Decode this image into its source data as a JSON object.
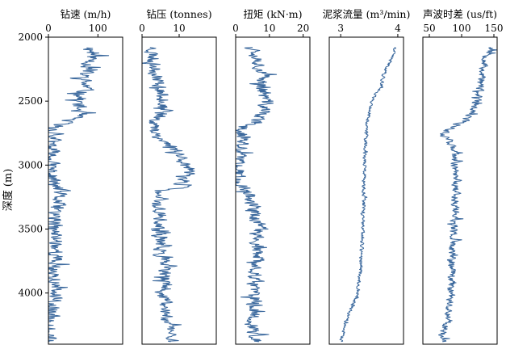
{
  "chart_data": {
    "type": "line",
    "y": {
      "label": "深度 (m)",
      "range": [
        2000,
        4400
      ],
      "inverted": true,
      "ticks": [
        2000,
        2500,
        3000,
        3500,
        4000
      ]
    },
    "series_color": "#3d6a9e",
    "tracks": [
      {
        "title": "钻速 (m/h)",
        "xlim": [
          0,
          150
        ],
        "ticks": [
          0,
          100
        ],
        "profile": [
          [
            2080,
            85
          ],
          [
            2150,
            90
          ],
          [
            2200,
            85
          ],
          [
            2300,
            70
          ],
          [
            2400,
            75
          ],
          [
            2500,
            60
          ],
          [
            2600,
            62
          ],
          [
            2650,
            40
          ],
          [
            2700,
            12
          ],
          [
            2800,
            8
          ],
          [
            2900,
            5
          ],
          [
            3000,
            5
          ],
          [
            3100,
            8
          ],
          [
            3150,
            12
          ],
          [
            3200,
            22
          ],
          [
            3300,
            18
          ],
          [
            3400,
            12
          ],
          [
            3500,
            10
          ],
          [
            3600,
            18
          ],
          [
            3700,
            15
          ],
          [
            3800,
            12
          ],
          [
            3900,
            10
          ],
          [
            4000,
            14
          ],
          [
            4050,
            8
          ],
          [
            4100,
            5
          ],
          [
            4200,
            5
          ],
          [
            4300,
            3
          ],
          [
            4380,
            3
          ]
        ],
        "noise": 22,
        "seed": 11
      },
      {
        "title": "钻压 (tonnes)",
        "xlim": [
          0,
          20
        ],
        "ticks": [
          0,
          10
        ],
        "profile": [
          [
            2080,
            3
          ],
          [
            2200,
            3
          ],
          [
            2300,
            4
          ],
          [
            2400,
            5
          ],
          [
            2500,
            6
          ],
          [
            2600,
            5
          ],
          [
            2700,
            3
          ],
          [
            2800,
            5
          ],
          [
            2850,
            8
          ],
          [
            2900,
            10
          ],
          [
            3000,
            12
          ],
          [
            3100,
            12
          ],
          [
            3180,
            10
          ],
          [
            3200,
            4
          ],
          [
            3300,
            4
          ],
          [
            3400,
            5
          ],
          [
            3500,
            4
          ],
          [
            3600,
            5
          ],
          [
            3700,
            5
          ],
          [
            3800,
            6
          ],
          [
            3900,
            6
          ],
          [
            4000,
            6
          ],
          [
            4100,
            6
          ],
          [
            4200,
            7
          ],
          [
            4300,
            8
          ],
          [
            4380,
            8
          ]
        ],
        "noise": 2.6,
        "seed": 23
      },
      {
        "title": "扭矩 (kN·m)",
        "xlim": [
          0,
          22
        ],
        "ticks": [
          0,
          10,
          20
        ],
        "profile": [
          [
            2080,
            6
          ],
          [
            2200,
            7
          ],
          [
            2300,
            8
          ],
          [
            2400,
            8
          ],
          [
            2500,
            9
          ],
          [
            2600,
            8
          ],
          [
            2650,
            6
          ],
          [
            2700,
            2
          ],
          [
            2800,
            2
          ],
          [
            2900,
            1
          ],
          [
            3000,
            1
          ],
          [
            3100,
            1
          ],
          [
            3150,
            1
          ],
          [
            3200,
            4
          ],
          [
            3300,
            5
          ],
          [
            3400,
            6
          ],
          [
            3500,
            7
          ],
          [
            3600,
            6
          ],
          [
            3700,
            6
          ],
          [
            3800,
            6
          ],
          [
            3900,
            6
          ],
          [
            4000,
            5
          ],
          [
            4100,
            6
          ],
          [
            4200,
            5
          ],
          [
            4300,
            5
          ],
          [
            4380,
            6
          ]
        ],
        "noise": 3.0,
        "seed": 37
      },
      {
        "title": "泥浆流量 (m³/min)",
        "xlim": [
          2.8,
          4.1
        ],
        "ticks": [
          3,
          4
        ],
        "profile": [
          [
            2080,
            3.95
          ],
          [
            2150,
            3.9
          ],
          [
            2200,
            3.85
          ],
          [
            2300,
            3.75
          ],
          [
            2400,
            3.7
          ],
          [
            2450,
            3.6
          ],
          [
            2500,
            3.55
          ],
          [
            2600,
            3.5
          ],
          [
            2700,
            3.45
          ],
          [
            2800,
            3.45
          ],
          [
            2900,
            3.42
          ],
          [
            3000,
            3.42
          ],
          [
            3100,
            3.41
          ],
          [
            3200,
            3.4
          ],
          [
            3300,
            3.4
          ],
          [
            3400,
            3.39
          ],
          [
            3500,
            3.38
          ],
          [
            3600,
            3.38
          ],
          [
            3700,
            3.36
          ],
          [
            3800,
            3.35
          ],
          [
            3900,
            3.32
          ],
          [
            4000,
            3.3
          ],
          [
            4050,
            3.25
          ],
          [
            4100,
            3.2
          ],
          [
            4200,
            3.1
          ],
          [
            4300,
            3.05
          ],
          [
            4380,
            3.0
          ]
        ],
        "noise": 0.04,
        "seed": 41
      },
      {
        "title": "声波时差 (us/ft)",
        "xlim": [
          40,
          155
        ],
        "ticks": [
          50,
          100,
          150
        ],
        "profile": [
          [
            2080,
            148
          ],
          [
            2150,
            140
          ],
          [
            2250,
            133
          ],
          [
            2350,
            130
          ],
          [
            2450,
            126
          ],
          [
            2550,
            118
          ],
          [
            2650,
            105
          ],
          [
            2700,
            90
          ],
          [
            2750,
            70
          ],
          [
            2800,
            82
          ],
          [
            2900,
            88
          ],
          [
            3000,
            90
          ],
          [
            3100,
            92
          ],
          [
            3200,
            92
          ],
          [
            3300,
            90
          ],
          [
            3400,
            90
          ],
          [
            3500,
            88
          ],
          [
            3600,
            86
          ],
          [
            3700,
            85
          ],
          [
            3800,
            85
          ],
          [
            3900,
            85
          ],
          [
            4000,
            84
          ],
          [
            4100,
            82
          ],
          [
            4200,
            80
          ],
          [
            4300,
            72
          ],
          [
            4380,
            70
          ]
        ],
        "noise": 9,
        "seed": 53
      }
    ]
  }
}
